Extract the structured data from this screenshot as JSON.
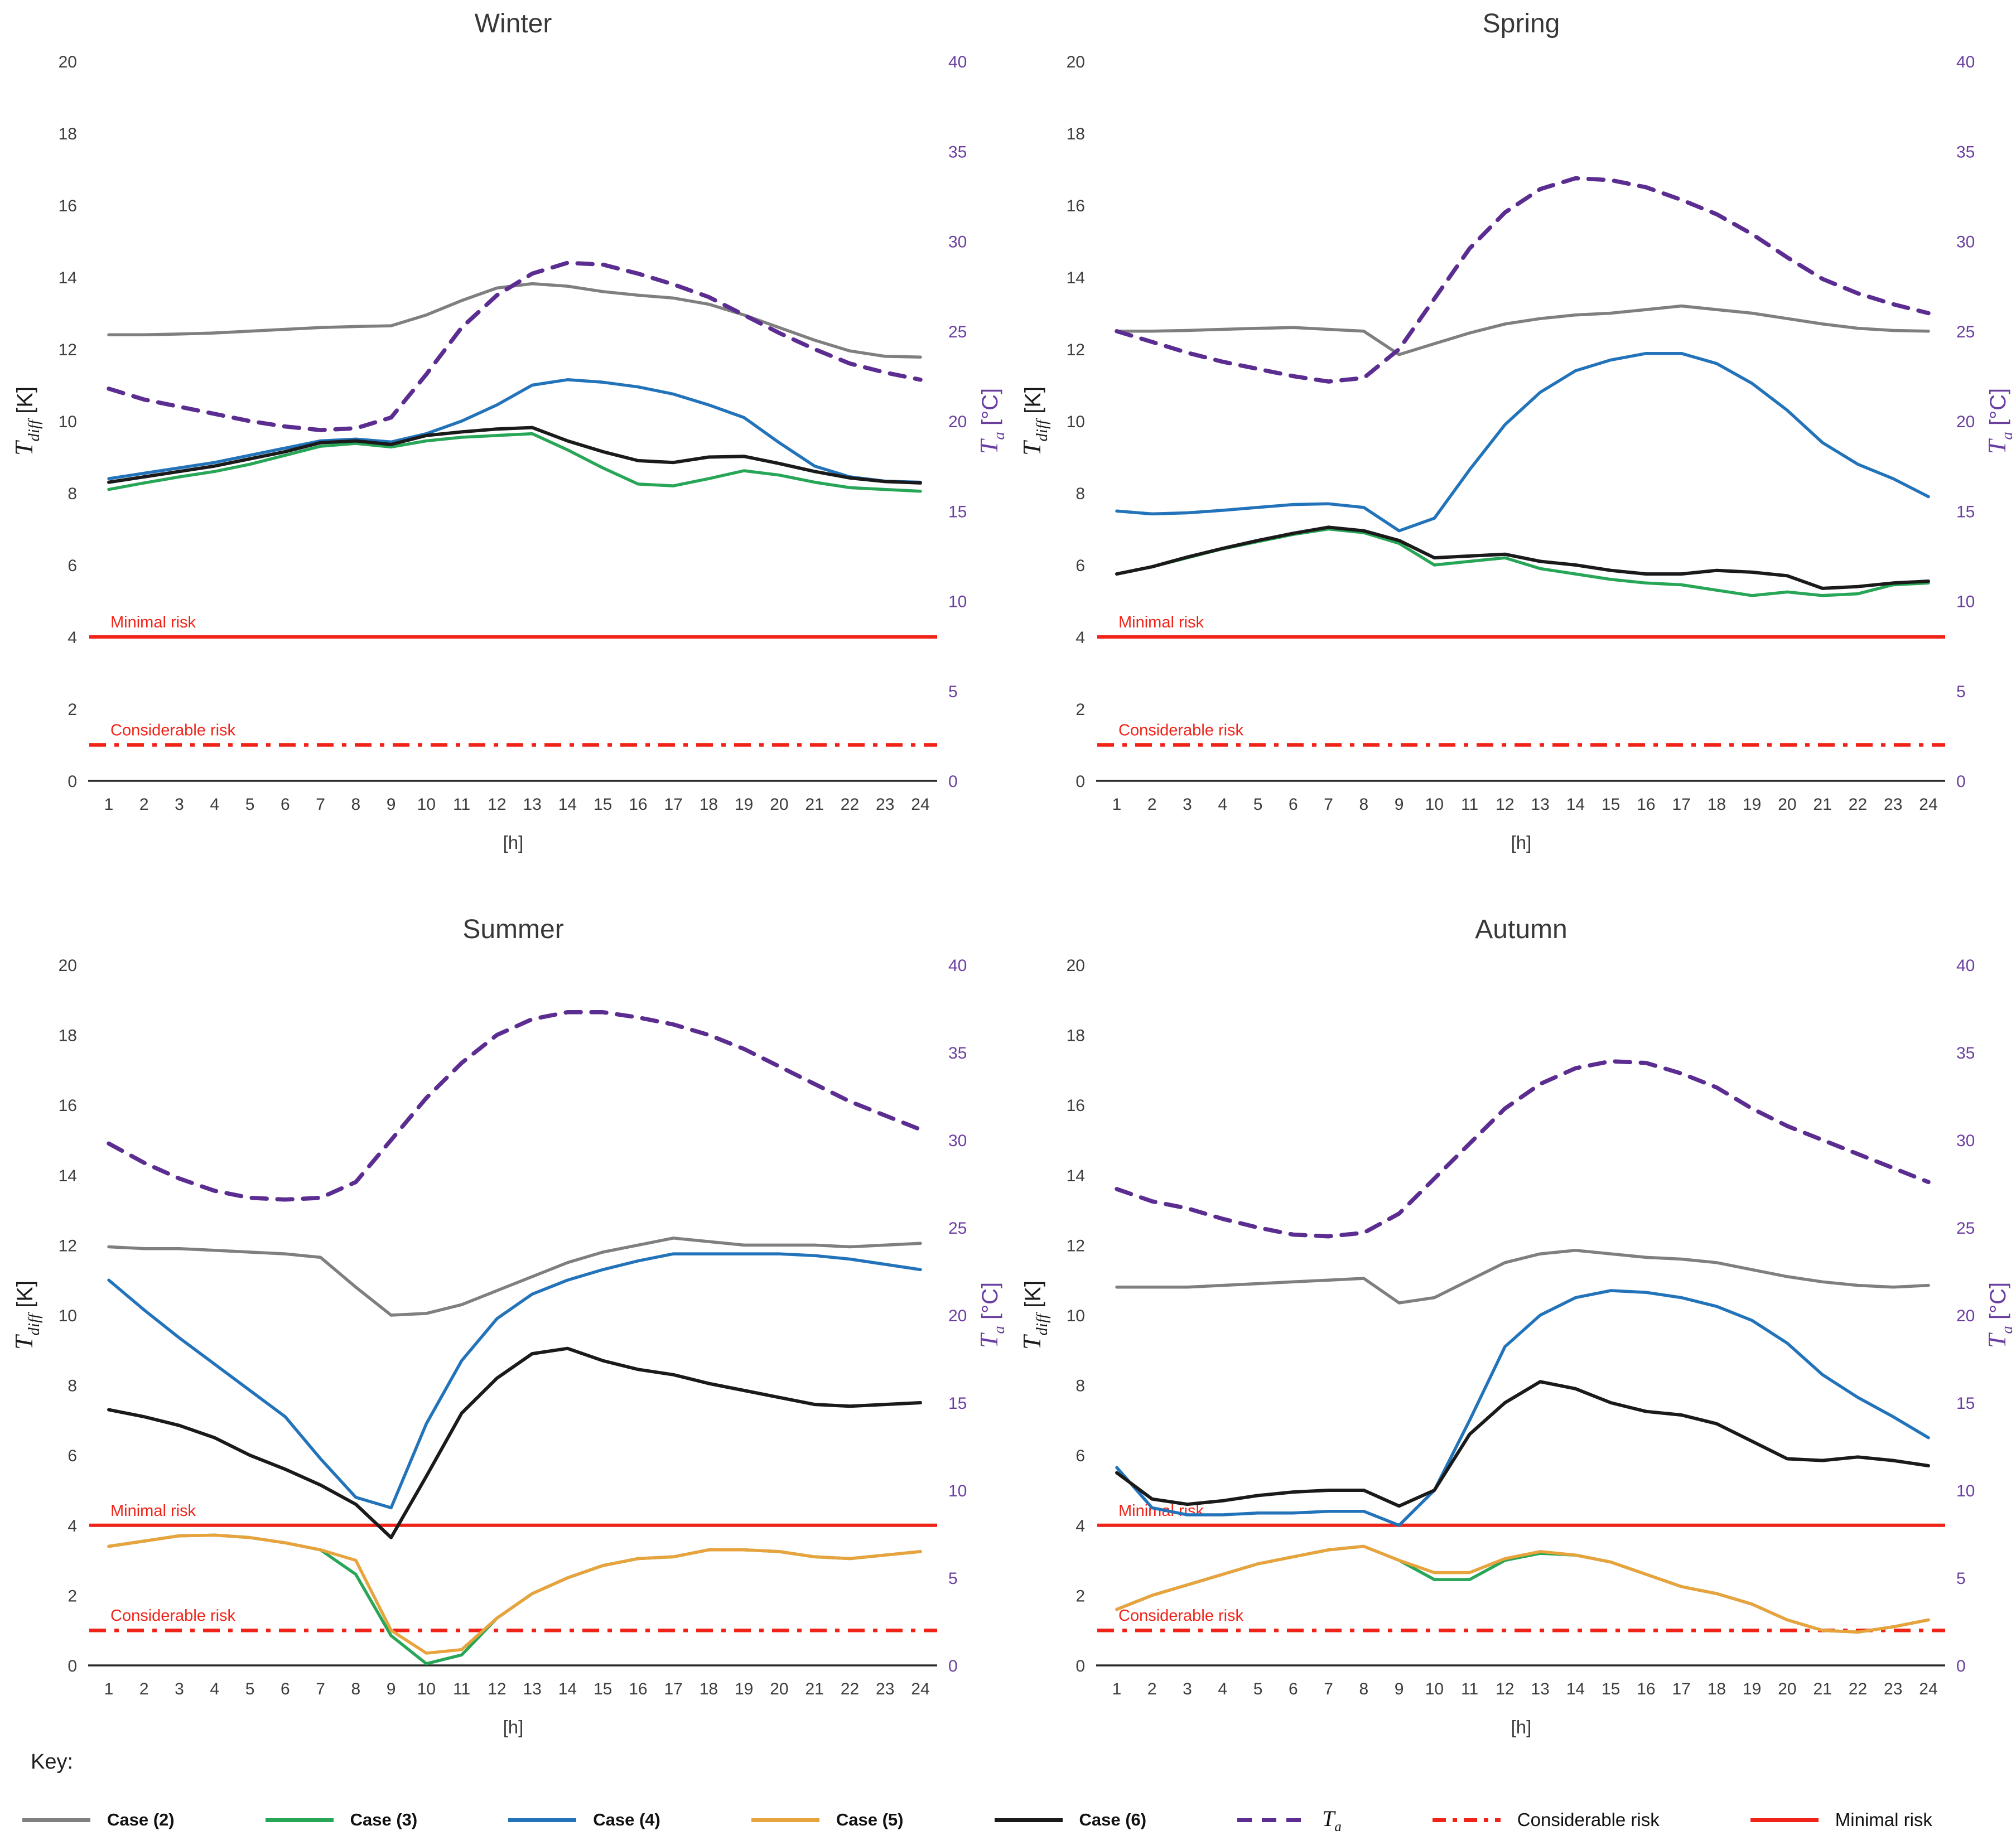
{
  "page": {
    "key_label": "Key:"
  },
  "colors": {
    "case2": "#7f7f7f",
    "case3": "#28a657",
    "case4": "#2273b9",
    "case5": "#e8a33d",
    "case6": "#1a1a1a",
    "ta": "#5c2d91",
    "ta_text": "#6b3fa0",
    "risk": "#f02318",
    "axis_text": "#3d3d3d",
    "axis_line": "#2b2b2b",
    "title_text": "#383838"
  },
  "axes": {
    "left": {
      "main": "T",
      "sub": "diff",
      "unit": "[K]",
      "ticks": [
        0,
        2,
        4,
        6,
        8,
        10,
        12,
        14,
        16,
        18,
        20
      ],
      "range": [
        0,
        20
      ]
    },
    "right": {
      "main": "T",
      "sub": "a",
      "unit": "[°C]",
      "ticks": [
        0,
        5,
        10,
        15,
        20,
        25,
        30,
        35,
        40
      ],
      "range": [
        0,
        40
      ]
    },
    "x": {
      "label": "[h]",
      "ticks": [
        1,
        2,
        3,
        4,
        5,
        6,
        7,
        8,
        9,
        10,
        11,
        12,
        13,
        14,
        15,
        16,
        17,
        18,
        19,
        20,
        21,
        22,
        23,
        24
      ]
    }
  },
  "risk": {
    "minimal": {
      "label": "Minimal risk",
      "value": 4
    },
    "considerable": {
      "label": "Considerable risk",
      "value": 1
    }
  },
  "legend": {
    "items": [
      {
        "label": "Case (2)",
        "color": "case2",
        "style": "solid",
        "bold": true
      },
      {
        "label": "Case (3)",
        "color": "case3",
        "style": "solid",
        "bold": true
      },
      {
        "label": "Case (4)",
        "color": "case4",
        "style": "solid",
        "bold": true
      },
      {
        "label": "Case (5)",
        "color": "case5",
        "style": "solid",
        "bold": true
      },
      {
        "label": "Case (6)",
        "color": "case6",
        "style": "solid",
        "bold": true
      },
      {
        "label": "T",
        "sub": "a",
        "math": true,
        "color": "ta",
        "style": "dashed",
        "bold": false
      },
      {
        "label": "Considerable risk",
        "color": "risk",
        "style": "dashdot",
        "bold": false
      },
      {
        "label": "Minimal risk",
        "color": "risk",
        "style": "solid",
        "bold": false
      }
    ]
  },
  "chart_data": [
    {
      "type": "line",
      "title": "Winter",
      "xlabel": "[h]",
      "x": [
        1,
        2,
        3,
        4,
        5,
        6,
        7,
        8,
        9,
        10,
        11,
        12,
        13,
        14,
        15,
        16,
        17,
        18,
        19,
        20,
        21,
        22,
        23,
        24
      ],
      "ylim_left": [
        0,
        20
      ],
      "ylim_right": [
        0,
        40
      ],
      "series": [
        {
          "name": "case-2",
          "label": "Case (2)",
          "color": "case2",
          "axis": "left",
          "dash": false,
          "values": [
            12.4,
            12.4,
            12.42,
            12.45,
            12.5,
            12.55,
            12.6,
            12.63,
            12.65,
            12.95,
            13.35,
            13.7,
            13.82,
            13.75,
            13.6,
            13.5,
            13.42,
            13.25,
            12.95,
            12.6,
            12.25,
            11.95,
            11.8,
            11.78
          ]
        },
        {
          "name": "ta",
          "label": "Ta",
          "color": "ta",
          "axis": "right",
          "dash": true,
          "values": [
            21.8,
            21.2,
            20.8,
            20.4,
            20.0,
            19.7,
            19.5,
            19.6,
            20.2,
            22.6,
            25.2,
            27.0,
            28.2,
            28.8,
            28.7,
            28.2,
            27.6,
            26.9,
            25.9,
            24.9,
            24.0,
            23.2,
            22.7,
            22.3
          ]
        },
        {
          "name": "case-3",
          "label": "Case (3)",
          "color": "case3",
          "axis": "left",
          "dash": false,
          "values": [
            8.1,
            8.28,
            8.45,
            8.6,
            8.8,
            9.05,
            9.3,
            9.38,
            9.28,
            9.45,
            9.55,
            9.6,
            9.65,
            9.2,
            8.7,
            8.25,
            8.2,
            8.4,
            8.62,
            8.5,
            8.3,
            8.15,
            8.1,
            8.05
          ]
        },
        {
          "name": "case-4",
          "label": "Case (4)",
          "color": "case4",
          "axis": "left",
          "dash": false,
          "values": [
            8.4,
            8.55,
            8.7,
            8.85,
            9.05,
            9.25,
            9.45,
            9.5,
            9.42,
            9.65,
            10.0,
            10.45,
            11.0,
            11.15,
            11.08,
            10.95,
            10.75,
            10.45,
            10.1,
            9.4,
            8.75,
            8.45,
            8.33,
            8.3
          ]
        },
        {
          "name": "case-6",
          "label": "Case (6)",
          "color": "case6",
          "axis": "left",
          "dash": false,
          "values": [
            8.3,
            8.45,
            8.6,
            8.75,
            8.95,
            9.15,
            9.4,
            9.45,
            9.35,
            9.6,
            9.7,
            9.78,
            9.82,
            9.45,
            9.15,
            8.9,
            8.85,
            9.0,
            9.02,
            8.82,
            8.6,
            8.42,
            8.32,
            8.28
          ]
        }
      ]
    },
    {
      "type": "line",
      "title": "Spring",
      "xlabel": "[h]",
      "x": [
        1,
        2,
        3,
        4,
        5,
        6,
        7,
        8,
        9,
        10,
        11,
        12,
        13,
        14,
        15,
        16,
        17,
        18,
        19,
        20,
        21,
        22,
        23,
        24
      ],
      "ylim_left": [
        0,
        20
      ],
      "ylim_right": [
        0,
        40
      ],
      "series": [
        {
          "name": "case-2",
          "label": "Case (2)",
          "color": "case2",
          "axis": "left",
          "dash": false,
          "values": [
            12.5,
            12.5,
            12.52,
            12.55,
            12.58,
            12.6,
            12.55,
            12.5,
            11.85,
            12.15,
            12.45,
            12.7,
            12.85,
            12.95,
            13.0,
            13.1,
            13.2,
            13.1,
            13.0,
            12.85,
            12.7,
            12.58,
            12.52,
            12.5
          ]
        },
        {
          "name": "ta",
          "label": "Ta",
          "color": "ta",
          "axis": "right",
          "dash": true,
          "values": [
            25.0,
            24.4,
            23.8,
            23.3,
            22.9,
            22.5,
            22.2,
            22.4,
            24.0,
            26.8,
            29.6,
            31.6,
            32.9,
            33.5,
            33.4,
            33.0,
            32.3,
            31.5,
            30.4,
            29.1,
            27.9,
            27.1,
            26.5,
            26.0
          ]
        },
        {
          "name": "case-3",
          "label": "Case (3)",
          "color": "case3",
          "axis": "left",
          "dash": false,
          "values": [
            5.75,
            5.95,
            6.2,
            6.45,
            6.65,
            6.85,
            7.0,
            6.9,
            6.6,
            6.0,
            6.1,
            6.2,
            5.9,
            5.75,
            5.6,
            5.5,
            5.45,
            5.3,
            5.15,
            5.25,
            5.15,
            5.2,
            5.45,
            5.5
          ]
        },
        {
          "name": "case-4",
          "label": "Case (4)",
          "color": "case4",
          "axis": "left",
          "dash": false,
          "values": [
            7.5,
            7.42,
            7.45,
            7.52,
            7.6,
            7.68,
            7.7,
            7.6,
            6.95,
            7.3,
            8.65,
            9.9,
            10.8,
            11.4,
            11.7,
            11.88,
            11.88,
            11.6,
            11.05,
            10.3,
            9.4,
            8.8,
            8.4,
            7.9
          ]
        },
        {
          "name": "case-6",
          "label": "Case (6)",
          "color": "case6",
          "axis": "left",
          "dash": false,
          "values": [
            5.75,
            5.95,
            6.22,
            6.46,
            6.68,
            6.88,
            7.05,
            6.95,
            6.68,
            6.2,
            6.25,
            6.3,
            6.1,
            6.0,
            5.85,
            5.75,
            5.75,
            5.85,
            5.8,
            5.7,
            5.35,
            5.4,
            5.5,
            5.55
          ]
        }
      ]
    },
    {
      "type": "line",
      "title": "Summer",
      "xlabel": "[h]",
      "x": [
        1,
        2,
        3,
        4,
        5,
        6,
        7,
        8,
        9,
        10,
        11,
        12,
        13,
        14,
        15,
        16,
        17,
        18,
        19,
        20,
        21,
        22,
        23,
        24
      ],
      "ylim_left": [
        0,
        20
      ],
      "ylim_right": [
        0,
        40
      ],
      "series": [
        {
          "name": "case-2",
          "label": "Case (2)",
          "color": "case2",
          "axis": "left",
          "dash": false,
          "values": [
            11.95,
            11.9,
            11.9,
            11.85,
            11.8,
            11.75,
            11.65,
            10.8,
            10.0,
            10.05,
            10.3,
            10.7,
            11.1,
            11.5,
            11.8,
            12.0,
            12.2,
            12.1,
            12.0,
            12.0,
            12.0,
            11.95,
            12.0,
            12.05
          ]
        },
        {
          "name": "ta",
          "label": "Ta",
          "color": "ta",
          "axis": "right",
          "dash": true,
          "values": [
            29.8,
            28.7,
            27.8,
            27.1,
            26.7,
            26.6,
            26.7,
            27.6,
            30.0,
            32.4,
            34.4,
            36.0,
            36.9,
            37.3,
            37.3,
            37.0,
            36.6,
            36.0,
            35.2,
            34.2,
            33.2,
            32.2,
            31.4,
            30.6
          ]
        },
        {
          "name": "case-3",
          "label": "Case (3)",
          "color": "case3",
          "axis": "left",
          "dash": false,
          "values": [
            3.4,
            3.55,
            3.7,
            3.72,
            3.65,
            3.5,
            3.3,
            2.6,
            0.85,
            0.05,
            0.3,
            1.35,
            2.05,
            2.5,
            2.85,
            3.05,
            3.1,
            3.3,
            3.3,
            3.25,
            3.1,
            3.05,
            3.15,
            3.25
          ]
        },
        {
          "name": "case-5",
          "label": "Case (5)",
          "color": "case5",
          "axis": "left",
          "dash": false,
          "values": [
            3.4,
            3.55,
            3.7,
            3.72,
            3.65,
            3.5,
            3.3,
            3.0,
            1.0,
            0.35,
            0.45,
            1.35,
            2.05,
            2.5,
            2.85,
            3.05,
            3.1,
            3.3,
            3.3,
            3.25,
            3.1,
            3.05,
            3.15,
            3.25
          ]
        },
        {
          "name": "case-4",
          "label": "Case (4)",
          "color": "case4",
          "axis": "left",
          "dash": false,
          "values": [
            11.0,
            10.15,
            9.35,
            8.6,
            7.85,
            7.1,
            5.9,
            4.8,
            4.5,
            6.9,
            8.7,
            9.9,
            10.6,
            11.0,
            11.3,
            11.55,
            11.75,
            11.75,
            11.75,
            11.75,
            11.7,
            11.6,
            11.45,
            11.3
          ]
        },
        {
          "name": "case-6",
          "label": "Case (6)",
          "color": "case6",
          "axis": "left",
          "dash": false,
          "values": [
            7.3,
            7.1,
            6.85,
            6.5,
            6.0,
            5.6,
            5.15,
            4.6,
            3.65,
            5.4,
            7.2,
            8.2,
            8.9,
            9.05,
            8.7,
            8.45,
            8.3,
            8.05,
            7.85,
            7.65,
            7.45,
            7.4,
            7.45,
            7.5
          ]
        }
      ]
    },
    {
      "type": "line",
      "title": "Autumn",
      "xlabel": "[h]",
      "x": [
        1,
        2,
        3,
        4,
        5,
        6,
        7,
        8,
        9,
        10,
        11,
        12,
        13,
        14,
        15,
        16,
        17,
        18,
        19,
        20,
        21,
        22,
        23,
        24
      ],
      "ylim_left": [
        0,
        20
      ],
      "ylim_right": [
        0,
        40
      ],
      "series": [
        {
          "name": "case-2",
          "label": "Case (2)",
          "color": "case2",
          "axis": "left",
          "dash": false,
          "values": [
            10.8,
            10.8,
            10.8,
            10.85,
            10.9,
            10.95,
            11.0,
            11.05,
            10.35,
            10.5,
            11.0,
            11.5,
            11.75,
            11.85,
            11.75,
            11.65,
            11.6,
            11.5,
            11.3,
            11.1,
            10.95,
            10.85,
            10.8,
            10.85
          ]
        },
        {
          "name": "ta",
          "label": "Ta",
          "color": "ta",
          "axis": "right",
          "dash": true,
          "values": [
            27.2,
            26.5,
            26.1,
            25.5,
            25.0,
            24.6,
            24.5,
            24.7,
            25.8,
            27.8,
            29.8,
            31.8,
            33.2,
            34.1,
            34.5,
            34.4,
            33.8,
            33.0,
            31.8,
            30.8,
            30.0,
            29.2,
            28.4,
            27.6
          ]
        },
        {
          "name": "case-3",
          "label": "Case (3)",
          "color": "case3",
          "axis": "left",
          "dash": false,
          "values": [
            1.6,
            2.0,
            2.3,
            2.6,
            2.9,
            3.1,
            3.3,
            3.4,
            3.0,
            2.45,
            2.45,
            3.0,
            3.2,
            3.15,
            2.95,
            2.6,
            2.25,
            2.05,
            1.75,
            1.3,
            1.0,
            0.95,
            1.1,
            1.3
          ]
        },
        {
          "name": "case-5",
          "label": "Case (5)",
          "color": "case5",
          "axis": "left",
          "dash": false,
          "values": [
            1.6,
            2.0,
            2.3,
            2.6,
            2.9,
            3.1,
            3.3,
            3.4,
            3.0,
            2.65,
            2.65,
            3.05,
            3.25,
            3.15,
            2.95,
            2.6,
            2.25,
            2.05,
            1.75,
            1.3,
            1.0,
            0.95,
            1.1,
            1.3
          ]
        },
        {
          "name": "case-4",
          "label": "Case (4)",
          "color": "case4",
          "axis": "left",
          "dash": false,
          "values": [
            5.65,
            4.5,
            4.3,
            4.3,
            4.35,
            4.35,
            4.4,
            4.4,
            4.0,
            5.0,
            7.0,
            9.1,
            10.0,
            10.5,
            10.7,
            10.65,
            10.5,
            10.25,
            9.85,
            9.2,
            8.3,
            7.65,
            7.1,
            6.5
          ]
        },
        {
          "name": "case-6",
          "label": "Case (6)",
          "color": "case6",
          "axis": "left",
          "dash": false,
          "values": [
            5.5,
            4.75,
            4.6,
            4.7,
            4.85,
            4.95,
            5.0,
            5.0,
            4.55,
            5.0,
            6.6,
            7.5,
            8.1,
            7.9,
            7.5,
            7.25,
            7.15,
            6.9,
            6.4,
            5.9,
            5.85,
            5.95,
            5.85,
            5.7
          ]
        }
      ]
    }
  ]
}
